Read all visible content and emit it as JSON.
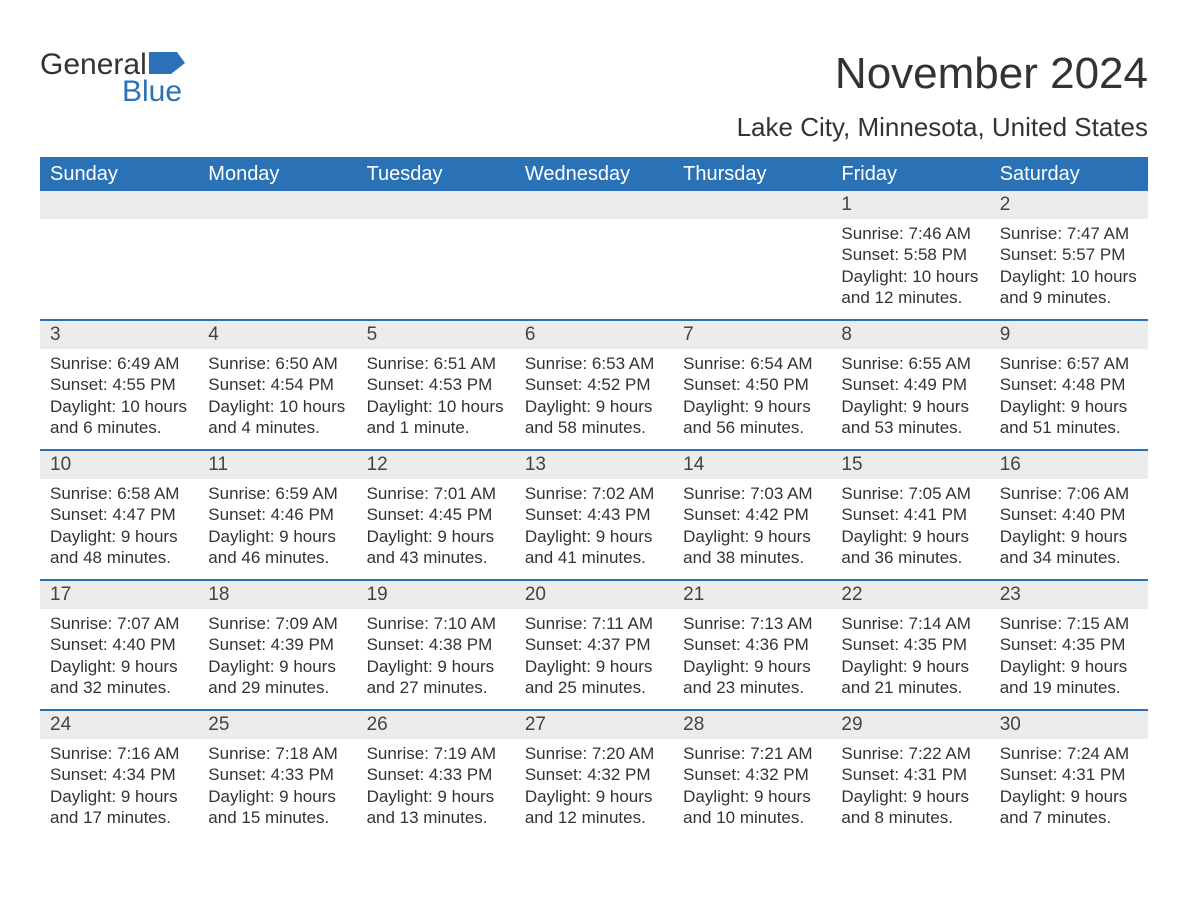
{
  "brand": {
    "word1": "General",
    "word2": "Blue"
  },
  "colors": {
    "accent": "#2a72b5",
    "header_bg": "#2a72b5",
    "header_text": "#ffffff",
    "daynum_bg": "#ececec",
    "text": "#333333",
    "page_bg": "#ffffff"
  },
  "title": {
    "month": "November 2024",
    "location": "Lake City, Minnesota, United States"
  },
  "day_headers": [
    "Sunday",
    "Monday",
    "Tuesday",
    "Wednesday",
    "Thursday",
    "Friday",
    "Saturday"
  ],
  "weeks": [
    [
      {
        "day": "",
        "sunrise": "",
        "sunset": "",
        "daylight": ""
      },
      {
        "day": "",
        "sunrise": "",
        "sunset": "",
        "daylight": ""
      },
      {
        "day": "",
        "sunrise": "",
        "sunset": "",
        "daylight": ""
      },
      {
        "day": "",
        "sunrise": "",
        "sunset": "",
        "daylight": ""
      },
      {
        "day": "",
        "sunrise": "",
        "sunset": "",
        "daylight": ""
      },
      {
        "day": "1",
        "sunrise": "Sunrise: 7:46 AM",
        "sunset": "Sunset: 5:58 PM",
        "daylight": "Daylight: 10 hours and 12 minutes."
      },
      {
        "day": "2",
        "sunrise": "Sunrise: 7:47 AM",
        "sunset": "Sunset: 5:57 PM",
        "daylight": "Daylight: 10 hours and 9 minutes."
      }
    ],
    [
      {
        "day": "3",
        "sunrise": "Sunrise: 6:49 AM",
        "sunset": "Sunset: 4:55 PM",
        "daylight": "Daylight: 10 hours and 6 minutes."
      },
      {
        "day": "4",
        "sunrise": "Sunrise: 6:50 AM",
        "sunset": "Sunset: 4:54 PM",
        "daylight": "Daylight: 10 hours and 4 minutes."
      },
      {
        "day": "5",
        "sunrise": "Sunrise: 6:51 AM",
        "sunset": "Sunset: 4:53 PM",
        "daylight": "Daylight: 10 hours and 1 minute."
      },
      {
        "day": "6",
        "sunrise": "Sunrise: 6:53 AM",
        "sunset": "Sunset: 4:52 PM",
        "daylight": "Daylight: 9 hours and 58 minutes."
      },
      {
        "day": "7",
        "sunrise": "Sunrise: 6:54 AM",
        "sunset": "Sunset: 4:50 PM",
        "daylight": "Daylight: 9 hours and 56 minutes."
      },
      {
        "day": "8",
        "sunrise": "Sunrise: 6:55 AM",
        "sunset": "Sunset: 4:49 PM",
        "daylight": "Daylight: 9 hours and 53 minutes."
      },
      {
        "day": "9",
        "sunrise": "Sunrise: 6:57 AM",
        "sunset": "Sunset: 4:48 PM",
        "daylight": "Daylight: 9 hours and 51 minutes."
      }
    ],
    [
      {
        "day": "10",
        "sunrise": "Sunrise: 6:58 AM",
        "sunset": "Sunset: 4:47 PM",
        "daylight": "Daylight: 9 hours and 48 minutes."
      },
      {
        "day": "11",
        "sunrise": "Sunrise: 6:59 AM",
        "sunset": "Sunset: 4:46 PM",
        "daylight": "Daylight: 9 hours and 46 minutes."
      },
      {
        "day": "12",
        "sunrise": "Sunrise: 7:01 AM",
        "sunset": "Sunset: 4:45 PM",
        "daylight": "Daylight: 9 hours and 43 minutes."
      },
      {
        "day": "13",
        "sunrise": "Sunrise: 7:02 AM",
        "sunset": "Sunset: 4:43 PM",
        "daylight": "Daylight: 9 hours and 41 minutes."
      },
      {
        "day": "14",
        "sunrise": "Sunrise: 7:03 AM",
        "sunset": "Sunset: 4:42 PM",
        "daylight": "Daylight: 9 hours and 38 minutes."
      },
      {
        "day": "15",
        "sunrise": "Sunrise: 7:05 AM",
        "sunset": "Sunset: 4:41 PM",
        "daylight": "Daylight: 9 hours and 36 minutes."
      },
      {
        "day": "16",
        "sunrise": "Sunrise: 7:06 AM",
        "sunset": "Sunset: 4:40 PM",
        "daylight": "Daylight: 9 hours and 34 minutes."
      }
    ],
    [
      {
        "day": "17",
        "sunrise": "Sunrise: 7:07 AM",
        "sunset": "Sunset: 4:40 PM",
        "daylight": "Daylight: 9 hours and 32 minutes."
      },
      {
        "day": "18",
        "sunrise": "Sunrise: 7:09 AM",
        "sunset": "Sunset: 4:39 PM",
        "daylight": "Daylight: 9 hours and 29 minutes."
      },
      {
        "day": "19",
        "sunrise": "Sunrise: 7:10 AM",
        "sunset": "Sunset: 4:38 PM",
        "daylight": "Daylight: 9 hours and 27 minutes."
      },
      {
        "day": "20",
        "sunrise": "Sunrise: 7:11 AM",
        "sunset": "Sunset: 4:37 PM",
        "daylight": "Daylight: 9 hours and 25 minutes."
      },
      {
        "day": "21",
        "sunrise": "Sunrise: 7:13 AM",
        "sunset": "Sunset: 4:36 PM",
        "daylight": "Daylight: 9 hours and 23 minutes."
      },
      {
        "day": "22",
        "sunrise": "Sunrise: 7:14 AM",
        "sunset": "Sunset: 4:35 PM",
        "daylight": "Daylight: 9 hours and 21 minutes."
      },
      {
        "day": "23",
        "sunrise": "Sunrise: 7:15 AM",
        "sunset": "Sunset: 4:35 PM",
        "daylight": "Daylight: 9 hours and 19 minutes."
      }
    ],
    [
      {
        "day": "24",
        "sunrise": "Sunrise: 7:16 AM",
        "sunset": "Sunset: 4:34 PM",
        "daylight": "Daylight: 9 hours and 17 minutes."
      },
      {
        "day": "25",
        "sunrise": "Sunrise: 7:18 AM",
        "sunset": "Sunset: 4:33 PM",
        "daylight": "Daylight: 9 hours and 15 minutes."
      },
      {
        "day": "26",
        "sunrise": "Sunrise: 7:19 AM",
        "sunset": "Sunset: 4:33 PM",
        "daylight": "Daylight: 9 hours and 13 minutes."
      },
      {
        "day": "27",
        "sunrise": "Sunrise: 7:20 AM",
        "sunset": "Sunset: 4:32 PM",
        "daylight": "Daylight: 9 hours and 12 minutes."
      },
      {
        "day": "28",
        "sunrise": "Sunrise: 7:21 AM",
        "sunset": "Sunset: 4:32 PM",
        "daylight": "Daylight: 9 hours and 10 minutes."
      },
      {
        "day": "29",
        "sunrise": "Sunrise: 7:22 AM",
        "sunset": "Sunset: 4:31 PM",
        "daylight": "Daylight: 9 hours and 8 minutes."
      },
      {
        "day": "30",
        "sunrise": "Sunrise: 7:24 AM",
        "sunset": "Sunset: 4:31 PM",
        "daylight": "Daylight: 9 hours and 7 minutes."
      }
    ]
  ]
}
